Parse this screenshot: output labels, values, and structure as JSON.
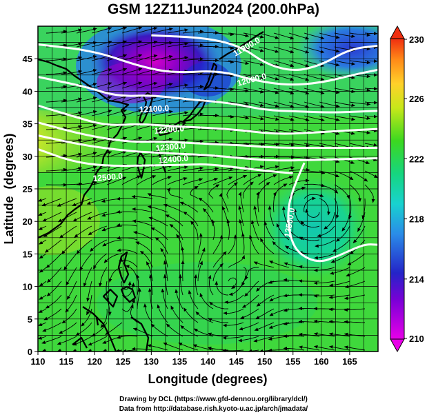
{
  "title": "GSM 12Z11Jun2024 (200.0hPa)",
  "credits": {
    "line1": "Drawing by DCL (https://www.gfd-dennou.org/library/dcl/)",
    "line2": "Data from http://database.rish.kyoto-u.ac.jp/arch/jmadata/"
  },
  "chart_data": {
    "type": "map",
    "xlabel": "Longitude (degrees)",
    "ylabel": "Latitude  (degrees)",
    "xlim": [
      110,
      170
    ],
    "ylim": [
      0,
      50
    ],
    "x_ticks": [
      110,
      115,
      120,
      125,
      130,
      135,
      140,
      145,
      150,
      155,
      160,
      165
    ],
    "y_ticks": [
      0,
      5,
      10,
      15,
      20,
      25,
      30,
      35,
      40,
      45
    ],
    "grid": true,
    "shaded_field_colorbar": {
      "min": 210,
      "max": 230,
      "labels": [
        "230",
        "226",
        "222",
        "218",
        "214",
        "210"
      ],
      "label_values": [
        230,
        226,
        222,
        218,
        214,
        210
      ]
    },
    "contours": [
      {
        "label": "11900.0",
        "points": [
          [
            130,
            48.6
          ],
          [
            140,
            48.2
          ],
          [
            146,
            46.8
          ],
          [
            150,
            44.3
          ],
          [
            155,
            43
          ],
          [
            160,
            44
          ],
          [
            165,
            46.5
          ],
          [
            170,
            47
          ]
        ]
      },
      {
        "label": "12000.0",
        "points": [
          [
            110,
            47.2
          ],
          [
            120,
            46.2
          ],
          [
            128,
            43.8
          ],
          [
            134,
            42.8
          ],
          [
            142,
            43.2
          ],
          [
            148,
            41.7
          ],
          [
            154,
            40.9
          ],
          [
            160,
            41.3
          ],
          [
            166,
            42.6
          ],
          [
            170,
            43.3
          ]
        ]
      },
      {
        "label": "12100.0",
        "points": [
          [
            110,
            42.2
          ],
          [
            118,
            40.8
          ],
          [
            124,
            39.2
          ],
          [
            130,
            39.4
          ],
          [
            136,
            38.8
          ],
          [
            144,
            38.2
          ],
          [
            150,
            37.1
          ],
          [
            156,
            36.9
          ],
          [
            162,
            36.7
          ],
          [
            170,
            37
          ]
        ]
      },
      {
        "label": "12200.0",
        "points": [
          [
            110,
            37.8
          ],
          [
            116,
            36.2
          ],
          [
            122,
            34.7
          ],
          [
            128,
            35
          ],
          [
            134,
            34.6
          ],
          [
            140,
            34.4
          ],
          [
            146,
            34
          ],
          [
            152,
            33.4
          ],
          [
            158,
            33.6
          ],
          [
            165,
            34
          ],
          [
            170,
            34.2
          ]
        ]
      },
      {
        "label": "12300.0",
        "points": [
          [
            110,
            35.2
          ],
          [
            118,
            33.3
          ],
          [
            126,
            32.2
          ],
          [
            132,
            32.3
          ],
          [
            140,
            31.9
          ],
          [
            146,
            31.7
          ],
          [
            152,
            31.3
          ],
          [
            160,
            31.3
          ],
          [
            170,
            31.3
          ]
        ]
      },
      {
        "label": "12400.0",
        "points": [
          [
            110,
            33.2
          ],
          [
            118,
            31.7
          ],
          [
            126,
            30.8
          ],
          [
            132,
            30.5
          ],
          [
            140,
            30.2
          ],
          [
            146,
            29.7
          ],
          [
            152,
            29.3
          ],
          [
            160,
            29.5
          ],
          [
            170,
            29.7
          ]
        ]
      },
      {
        "label": "12500.0",
        "points": [
          [
            110,
            31.1
          ],
          [
            116,
            29.2
          ],
          [
            122,
            28.5
          ],
          [
            130,
            28.6
          ],
          [
            136,
            28.7
          ],
          [
            140,
            28.8
          ],
          [
            146,
            28.2
          ],
          [
            152,
            27.6
          ],
          [
            155,
            27.4
          ]
        ]
      },
      {
        "label": "12500.0",
        "points": [
          [
            157,
            29
          ],
          [
            155,
            25
          ],
          [
            154,
            21.5
          ],
          [
            154.5,
            17.5
          ],
          [
            156,
            15
          ],
          [
            159.5,
            13.6
          ],
          [
            163,
            14.7
          ],
          [
            166,
            15.9
          ],
          [
            168,
            16.5
          ],
          [
            170,
            16.4
          ]
        ]
      }
    ],
    "contour_labels": [
      "11900.0",
      "12000.0",
      "12100.0",
      "12200.0",
      "12300.0",
      "12400.0",
      "12500.0",
      "12500.0"
    ]
  }
}
